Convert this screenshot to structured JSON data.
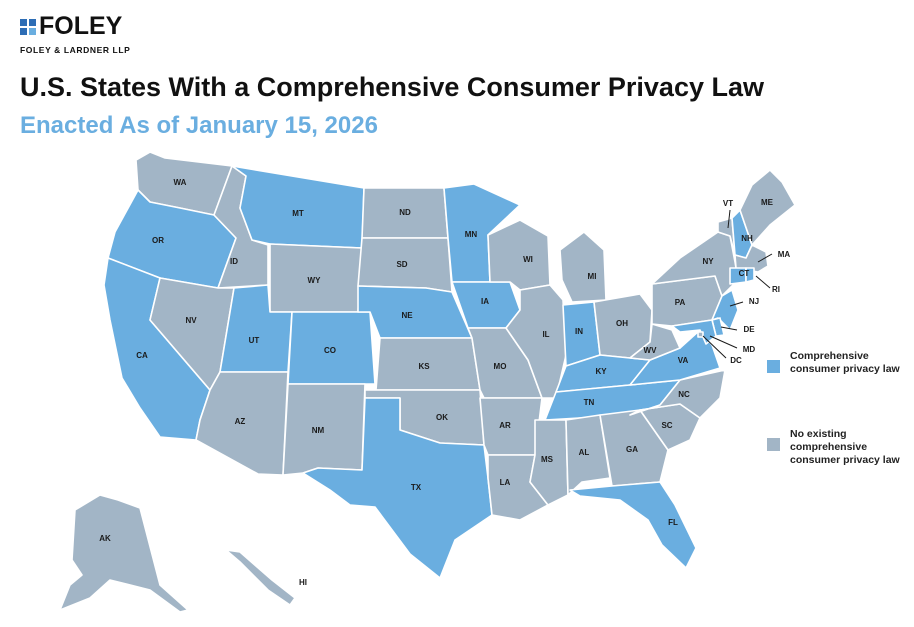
{
  "logo": {
    "wordmark": "FOLEY",
    "firm": "FOLEY & LARDNER LLP"
  },
  "title": "U.S. States With a Comprehensive Consumer Privacy Law",
  "subtitle": "Enacted As of January 15, 2026",
  "colors": {
    "law": "#6aaee0",
    "nolaw": "#a2b5c6",
    "subtitle": "#6aaee0",
    "logo_blue": "#2d6db5"
  },
  "legend": [
    {
      "key": "law",
      "label": "Comprehensive consumer privacy law"
    },
    {
      "key": "nolaw",
      "label": "No existing comprehensive consumer privacy law"
    }
  ],
  "states": [
    {
      "abbr": "WA",
      "law": false
    },
    {
      "abbr": "OR",
      "law": true
    },
    {
      "abbr": "CA",
      "law": true
    },
    {
      "abbr": "ID",
      "law": false
    },
    {
      "abbr": "NV",
      "law": false
    },
    {
      "abbr": "MT",
      "law": true
    },
    {
      "abbr": "WY",
      "law": false
    },
    {
      "abbr": "UT",
      "law": true
    },
    {
      "abbr": "AZ",
      "law": false
    },
    {
      "abbr": "CO",
      "law": true
    },
    {
      "abbr": "NM",
      "law": false
    },
    {
      "abbr": "ND",
      "law": false
    },
    {
      "abbr": "SD",
      "law": false
    },
    {
      "abbr": "NE",
      "law": true
    },
    {
      "abbr": "KS",
      "law": false
    },
    {
      "abbr": "OK",
      "law": false
    },
    {
      "abbr": "TX",
      "law": true
    },
    {
      "abbr": "MN",
      "law": true
    },
    {
      "abbr": "IA",
      "law": true
    },
    {
      "abbr": "MO",
      "law": false
    },
    {
      "abbr": "AR",
      "law": false
    },
    {
      "abbr": "LA",
      "law": false
    },
    {
      "abbr": "WI",
      "law": false
    },
    {
      "abbr": "IL",
      "law": false
    },
    {
      "abbr": "MI",
      "law": false
    },
    {
      "abbr": "IN",
      "law": true
    },
    {
      "abbr": "OH",
      "law": false
    },
    {
      "abbr": "KY",
      "law": true
    },
    {
      "abbr": "TN",
      "law": true
    },
    {
      "abbr": "MS",
      "law": false
    },
    {
      "abbr": "AL",
      "law": false
    },
    {
      "abbr": "GA",
      "law": false
    },
    {
      "abbr": "FL",
      "law": true
    },
    {
      "abbr": "SC",
      "law": false
    },
    {
      "abbr": "NC",
      "law": false
    },
    {
      "abbr": "VA",
      "law": true
    },
    {
      "abbr": "WV",
      "law": false
    },
    {
      "abbr": "PA",
      "law": false
    },
    {
      "abbr": "NY",
      "law": false
    },
    {
      "abbr": "VT",
      "law": false
    },
    {
      "abbr": "NH",
      "law": true
    },
    {
      "abbr": "ME",
      "law": false
    },
    {
      "abbr": "MA",
      "law": false
    },
    {
      "abbr": "CT",
      "law": true
    },
    {
      "abbr": "RI",
      "law": true
    },
    {
      "abbr": "NJ",
      "law": true
    },
    {
      "abbr": "DE",
      "law": true
    },
    {
      "abbr": "MD",
      "law": true
    },
    {
      "abbr": "DC",
      "law": false
    },
    {
      "abbr": "AK",
      "law": false
    },
    {
      "abbr": "HI",
      "law": false
    }
  ]
}
